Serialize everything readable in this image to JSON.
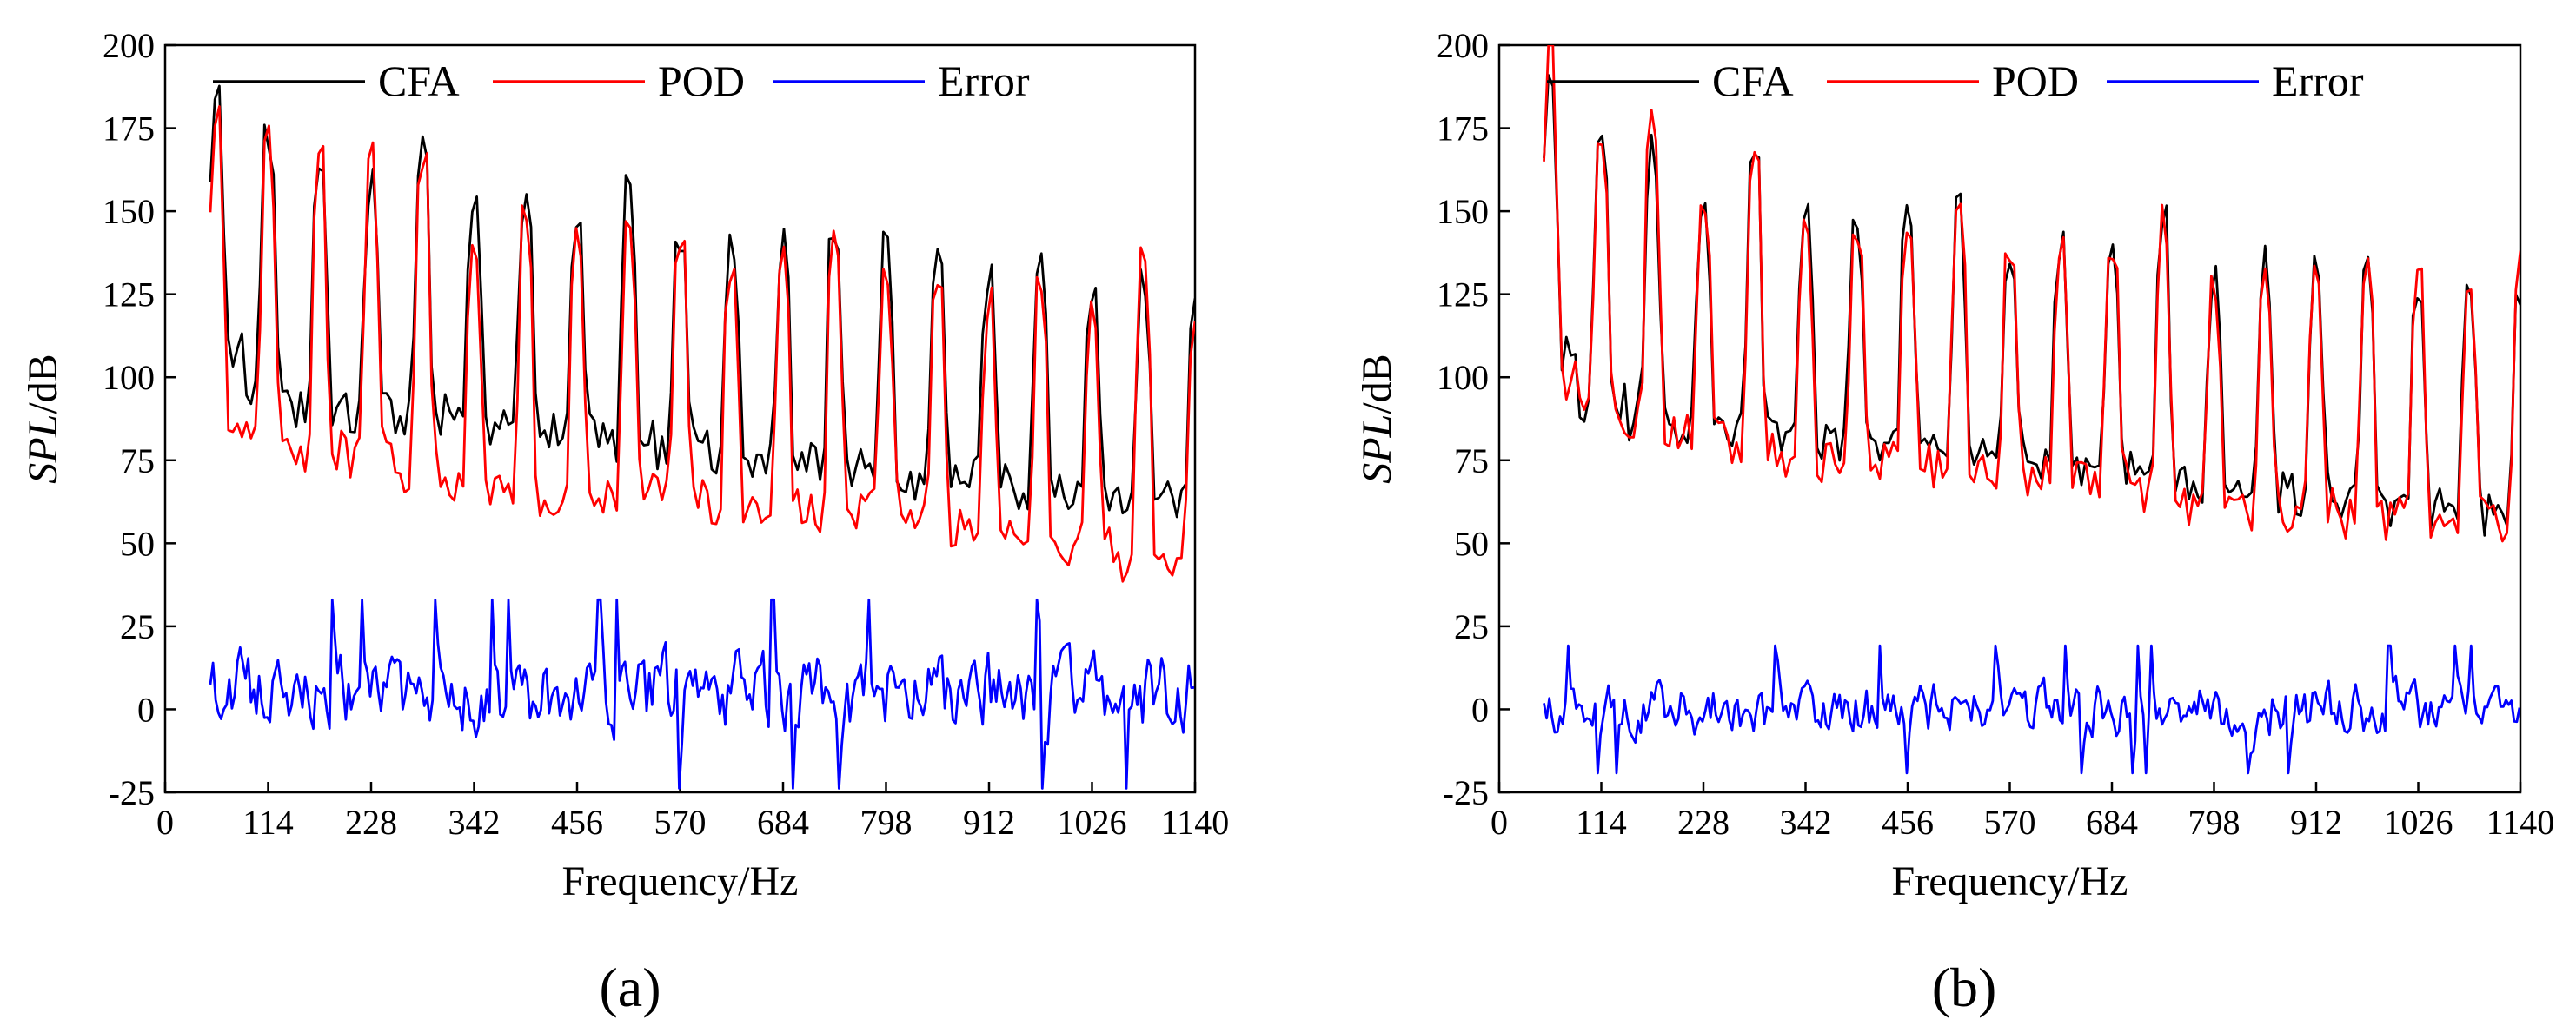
{
  "figure": {
    "panel_a_label": "(a)",
    "panel_b_label": "(b)"
  },
  "chart_data": [
    {
      "type": "line",
      "panel": "a",
      "caption": "(a)",
      "xlabel": "Frequency/Hz",
      "ylabel": "SPL/dB",
      "xlim": [
        0,
        1140
      ],
      "ylim": [
        -25,
        200
      ],
      "xticks": [
        0,
        114,
        228,
        342,
        456,
        570,
        684,
        798,
        912,
        1026,
        1140
      ],
      "yticks": [
        -25,
        0,
        25,
        50,
        75,
        100,
        125,
        150,
        175,
        200
      ],
      "legend": {
        "position": "top-right",
        "entries": [
          "CFA",
          "POD",
          "Error"
        ]
      },
      "peak_frequencies": [
        57,
        114,
        171,
        228,
        285,
        342,
        399,
        456,
        513,
        570,
        627,
        684,
        741,
        798,
        855,
        912,
        969,
        1026,
        1083,
        1140
      ],
      "series": [
        {
          "name": "CFA",
          "color": "#000000",
          "x_start": 50,
          "x_end": 1140,
          "step": 5,
          "peak_levels": [
            185,
            172,
            163,
            157,
            168,
            155,
            152,
            148,
            155,
            143,
            138,
            140,
            148,
            138,
            135,
            130,
            137,
            126,
            128,
            125
          ],
          "trough_levels": [
            108,
            98,
            92,
            90,
            88,
            86,
            84,
            82,
            80,
            78,
            77,
            76,
            74,
            72,
            70,
            68,
            66,
            64,
            62,
            60
          ]
        },
        {
          "name": "POD",
          "color": "#ff0000",
          "x_start": 50,
          "x_end": 1140,
          "step": 5,
          "peak_levels": [
            182,
            170,
            170,
            165,
            170,
            143,
            148,
            140,
            148,
            143,
            135,
            138,
            142,
            132,
            128,
            122,
            128,
            120,
            135,
            120
          ],
          "trough_levels": [
            85,
            82,
            78,
            75,
            72,
            68,
            65,
            62,
            65,
            64,
            62,
            60,
            58,
            60,
            55,
            52,
            50,
            48,
            45,
            42
          ]
        },
        {
          "name": "Error",
          "color": "#0000ff",
          "x_start": 50,
          "x_end": 1140,
          "step": 3,
          "mean": 5,
          "amplitude": 18,
          "min": -25,
          "max": 33
        }
      ]
    },
    {
      "type": "line",
      "panel": "b",
      "caption": "(b)",
      "xlabel": "Frequency/Hz",
      "ylabel": "SPL/dB",
      "xlim": [
        0,
        1140
      ],
      "ylim": [
        -25,
        200
      ],
      "xticks": [
        0,
        114,
        228,
        342,
        456,
        570,
        684,
        798,
        912,
        1026,
        1140
      ],
      "yticks": [
        -25,
        0,
        25,
        50,
        75,
        100,
        125,
        150,
        175,
        200
      ],
      "legend": {
        "position": "top-right",
        "entries": [
          "CFA",
          "POD",
          "Error"
        ]
      },
      "peak_frequencies": [
        57,
        114,
        171,
        228,
        285,
        342,
        399,
        456,
        513,
        570,
        627,
        684,
        741,
        798,
        855,
        912,
        969,
        1026,
        1083,
        1140
      ],
      "series": [
        {
          "name": "CFA",
          "color": "#000000",
          "x_start": 50,
          "x_end": 1140,
          "step": 5,
          "peak_levels": [
            195,
            170,
            170,
            155,
            172,
            150,
            145,
            152,
            150,
            140,
            140,
            143,
            148,
            130,
            135,
            133,
            130,
            128,
            130,
            128
          ],
          "trough_levels": [
            108,
            92,
            88,
            86,
            84,
            82,
            80,
            78,
            76,
            74,
            72,
            72,
            70,
            68,
            66,
            64,
            62,
            60,
            58,
            55
          ]
        },
        {
          "name": "POD",
          "color": "#ff0000",
          "x_start": 50,
          "x_end": 1140,
          "step": 5,
          "peak_levels": [
            197,
            172,
            180,
            152,
            170,
            148,
            145,
            150,
            153,
            140,
            138,
            142,
            146,
            128,
            132,
            130,
            132,
            130,
            128,
            132
          ],
          "trough_levels": [
            100,
            90,
            86,
            84,
            80,
            75,
            75,
            74,
            72,
            70,
            70,
            68,
            66,
            62,
            60,
            60,
            58,
            57,
            56,
            55
          ]
        },
        {
          "name": "Error",
          "color": "#0000ff",
          "x_start": 50,
          "x_end": 1140,
          "step": 3,
          "mean": 0,
          "amplitude": 12,
          "min": -25,
          "max": 26
        }
      ]
    }
  ]
}
